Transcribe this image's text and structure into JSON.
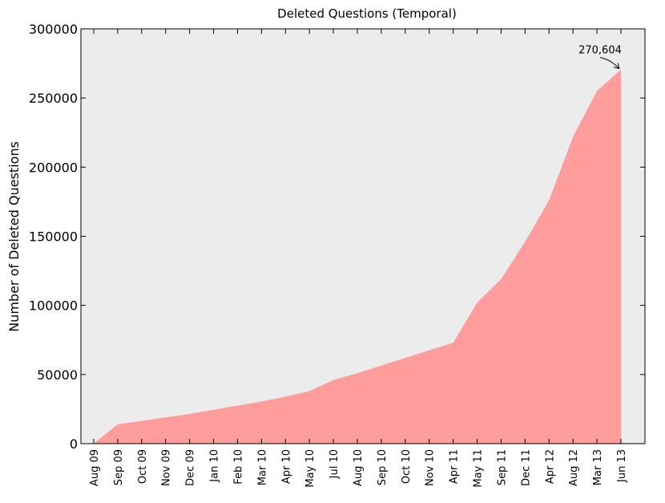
{
  "chart_data": {
    "type": "area",
    "title": "Deleted Questions (Temporal)",
    "y_label": "Number of Deleted Questions",
    "categories": [
      "Aug 09",
      "Sep 09",
      "Oct 09",
      "Nov 09",
      "Dec 09",
      "Jan 10",
      "Feb 10",
      "Mar 10",
      "Apr 10",
      "May 10",
      "Jul 10",
      "Aug 10",
      "Sep 10",
      "Oct 10",
      "Nov 10",
      "Apr 11",
      "May 11",
      "Sep 11",
      "Dec 11",
      "Apr 12",
      "Aug 12",
      "Mar 13",
      "Jun 13"
    ],
    "values": [
      0,
      14000,
      16500,
      19000,
      21500,
      24500,
      27500,
      30500,
      34000,
      38000,
      46000,
      51000,
      56500,
      62000,
      67500,
      73000,
      102000,
      119000,
      146000,
      176000,
      222000,
      255000,
      270604
    ],
    "annotation": "270,604",
    "color": "#ff9c9c",
    "background": "#ececec",
    "ylim": [
      0,
      300000
    ],
    "yticks": [
      0,
      50000,
      100000,
      150000,
      200000,
      250000,
      300000
    ]
  }
}
